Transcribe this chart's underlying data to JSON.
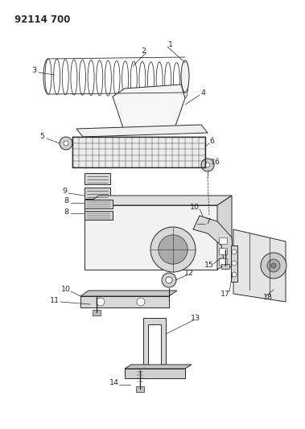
{
  "title": "92114 700",
  "bg_color": "#ffffff",
  "lc": "#2a2a2a",
  "fig_width": 3.79,
  "fig_height": 5.33,
  "dpi": 100
}
